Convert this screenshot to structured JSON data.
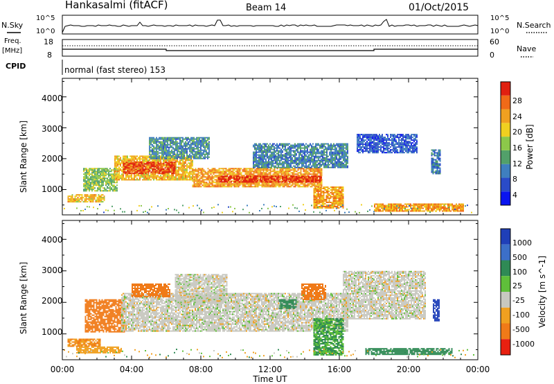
{
  "header": {
    "station": "Hankasalmi (fitACF)",
    "beam": "Beam 14",
    "date": "01/Oct/2015"
  },
  "noise_panel": {
    "left_label": "N.Sky",
    "left_ticks": [
      "10^5",
      "10^0"
    ],
    "right_ticks": [
      "10^5",
      "10^0"
    ],
    "right_label": "N.Search"
  },
  "freq_panel": {
    "left_label_1": "Freq.",
    "left_label_2": "[MHz]",
    "left_ticks": [
      "18",
      "8"
    ],
    "right_ticks": [
      "60",
      "0"
    ],
    "right_label": "Nave"
  },
  "cpid_panel": {
    "label": "CPID",
    "text": "normal (fast stereo) 153"
  },
  "x_axis": {
    "label": "Time UT",
    "ticks": [
      "00:00",
      "04:00",
      "08:00",
      "12:00",
      "16:00",
      "20:00",
      "00:00"
    ]
  },
  "colors": {
    "power": [
      "#0a14f0",
      "#2a4bc8",
      "#3f7fbf",
      "#52a06a",
      "#8cc84a",
      "#f0d020",
      "#f0a020",
      "#f06a18",
      "#e02010"
    ],
    "velocity_pos": [
      "#1f3fb8",
      "#3c6fc8",
      "#2f8a55",
      "#5fbf3a"
    ],
    "velocity_zero": "#c8c8c0",
    "velocity_neg": [
      "#f0a020",
      "#f07a18",
      "#e82010"
    ]
  },
  "chart_data": [
    {
      "type": "heatmap",
      "title": "",
      "ylabel": "Slant Range [km]",
      "xlabel": "",
      "x_range_hours": [
        0,
        24
      ],
      "ylim": [
        180,
        4600
      ],
      "y_ticks": [
        "1000",
        "2000",
        "3000",
        "4000"
      ],
      "colorbar": {
        "label": "Power [dB]",
        "ticks": [
          "4",
          "8",
          "12",
          "16",
          "20",
          "24",
          "28"
        ],
        "range": [
          0,
          30
        ]
      },
      "echo_regions": [
        {
          "t0": 0.3,
          "t1": 2.4,
          "range_km": [
            600,
            850
          ],
          "value": 20
        },
        {
          "t0": 1.2,
          "t1": 3.2,
          "range_km": [
            950,
            1700
          ],
          "value": 14
        },
        {
          "t0": 3.0,
          "t1": 7.5,
          "range_km": [
            1300,
            2100
          ],
          "value": 20
        },
        {
          "t0": 3.5,
          "t1": 6.5,
          "range_km": [
            1500,
            1900
          ],
          "value": 27
        },
        {
          "t0": 5.0,
          "t1": 8.5,
          "range_km": [
            2000,
            2700
          ],
          "value": 10
        },
        {
          "t0": 7.5,
          "t1": 15.0,
          "range_km": [
            1100,
            1700
          ],
          "value": 22
        },
        {
          "t0": 9.0,
          "t1": 15.0,
          "range_km": [
            1250,
            1450
          ],
          "value": 28
        },
        {
          "t0": 11.0,
          "t1": 16.5,
          "range_km": [
            1700,
            2500
          ],
          "value": 9
        },
        {
          "t0": 14.5,
          "t1": 16.2,
          "range_km": [
            400,
            1100
          ],
          "value": 22
        },
        {
          "t0": 17.0,
          "t1": 20.5,
          "range_km": [
            2200,
            2800
          ],
          "value": 6
        },
        {
          "t0": 18.0,
          "t1": 23.2,
          "range_km": [
            300,
            550
          ],
          "value": 22
        },
        {
          "t0": 21.3,
          "t1": 21.8,
          "range_km": [
            1500,
            2300
          ],
          "value": 8
        }
      ]
    },
    {
      "type": "heatmap",
      "title": "",
      "ylabel": "Slant Range [km]",
      "xlabel": "Time UT",
      "x_range_hours": [
        0,
        24
      ],
      "ylim": [
        180,
        4600
      ],
      "y_ticks": [
        "1000",
        "2000",
        "3000",
        "4000"
      ],
      "colorbar": {
        "label": "Velocity [m s^-1]",
        "ticks": [
          "1000",
          "500",
          "100",
          "25",
          "-25",
          "-100",
          "-500",
          "-1000"
        ]
      },
      "echo_regions": [
        {
          "t0": 0.3,
          "t1": 2.2,
          "range_km": [
            600,
            850
          ],
          "value": -300
        },
        {
          "t0": 0.8,
          "t1": 3.4,
          "range_km": [
            400,
            600
          ],
          "value": -250
        },
        {
          "t0": 1.3,
          "t1": 3.6,
          "range_km": [
            1050,
            2100
          ],
          "value": -400
        },
        {
          "t0": 3.4,
          "t1": 16.5,
          "range_km": [
            1100,
            2300
          ],
          "value": 0
        },
        {
          "t0": 4.0,
          "t1": 6.2,
          "range_km": [
            2200,
            2600
          ],
          "value": -500
        },
        {
          "t0": 6.5,
          "t1": 9.5,
          "range_km": [
            2000,
            2900
          ],
          "value": 0
        },
        {
          "t0": 12.5,
          "t1": 13.5,
          "range_km": [
            1800,
            2100
          ],
          "value": 150
        },
        {
          "t0": 13.8,
          "t1": 15.2,
          "range_km": [
            2100,
            2600
          ],
          "value": -500
        },
        {
          "t0": 14.5,
          "t1": 16.2,
          "range_km": [
            350,
            1500
          ],
          "value": 100
        },
        {
          "t0": 16.2,
          "t1": 21.0,
          "range_km": [
            1500,
            3000
          ],
          "value": 0
        },
        {
          "t0": 17.5,
          "t1": 22.5,
          "range_km": [
            350,
            550
          ],
          "value": 150
        },
        {
          "t0": 21.4,
          "t1": 21.8,
          "range_km": [
            1400,
            2100
          ],
          "value": 800
        }
      ]
    }
  ]
}
